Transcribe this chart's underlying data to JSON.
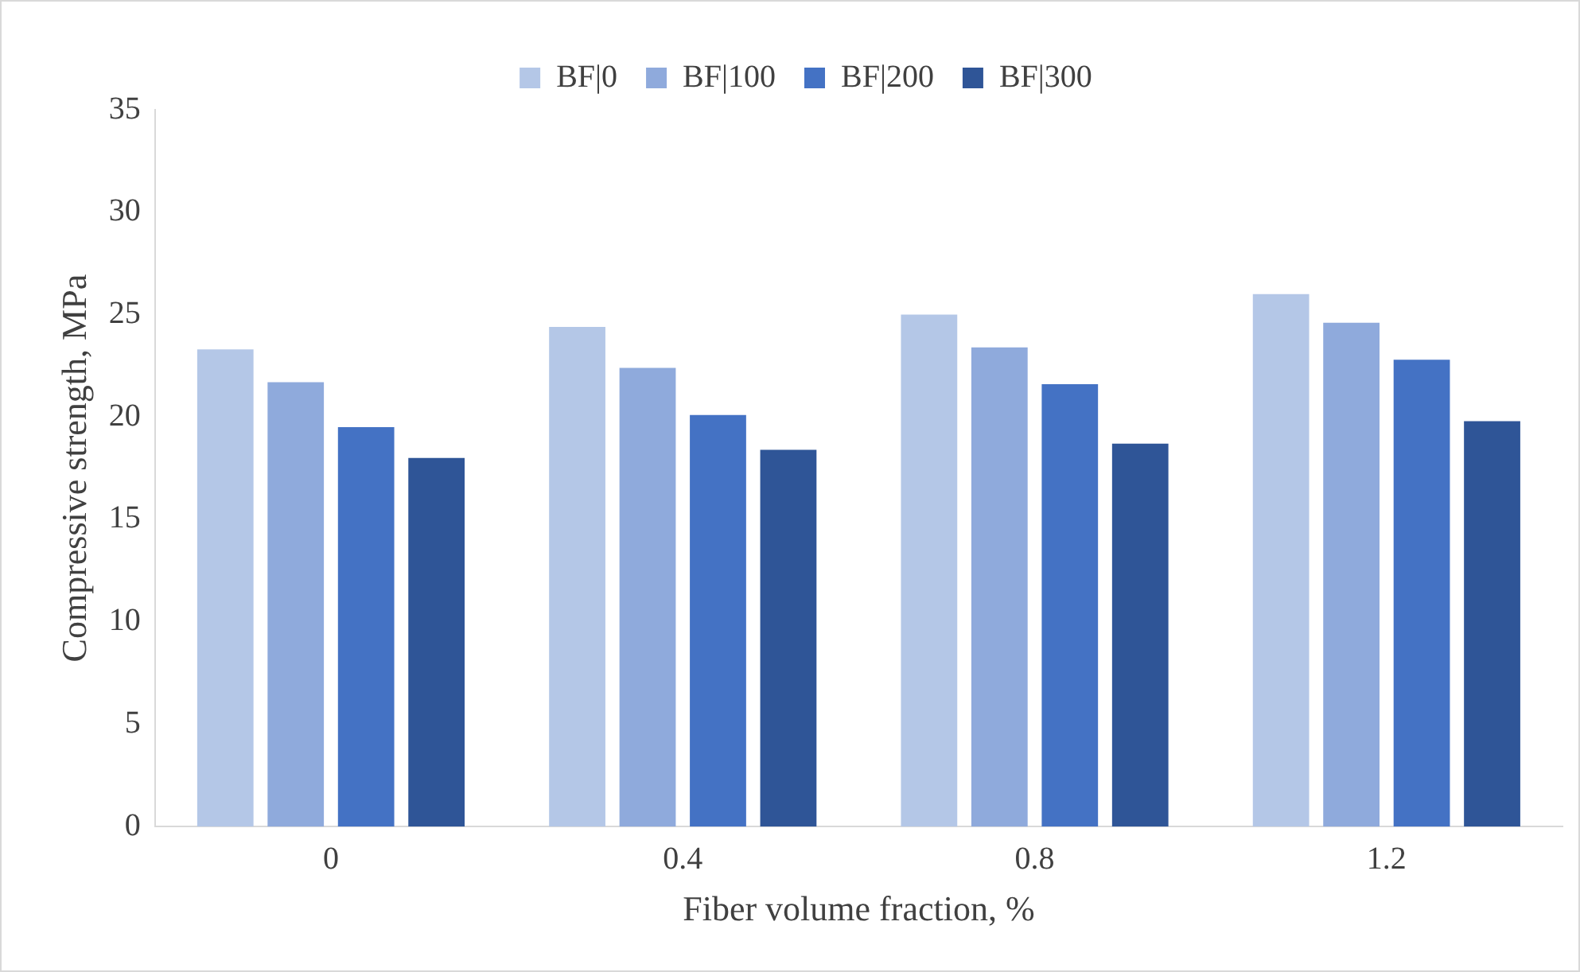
{
  "chart_data": {
    "type": "bar",
    "xlabel": "Fiber volume fraction, %",
    "ylabel": "Compressive strength, MPa",
    "categories": [
      "0",
      "0.4",
      "0.8",
      "1.2"
    ],
    "series": [
      {
        "name": "BF|0",
        "color": "#b4c7e7",
        "values": [
          23.3,
          24.4,
          25.0,
          26.0
        ]
      },
      {
        "name": "BF|100",
        "color": "#8faadc",
        "values": [
          21.7,
          22.4,
          23.4,
          24.6
        ]
      },
      {
        "name": "BF|200",
        "color": "#4472c4",
        "values": [
          19.5,
          20.1,
          21.6,
          22.8
        ]
      },
      {
        "name": "BF|300",
        "color": "#2f5597",
        "values": [
          18.0,
          18.4,
          18.7,
          19.8
        ]
      }
    ],
    "ylim": [
      0,
      35
    ],
    "yticks": [
      0,
      5,
      10,
      15,
      20,
      25,
      30,
      35
    ],
    "grid": false,
    "legend": "top"
  }
}
